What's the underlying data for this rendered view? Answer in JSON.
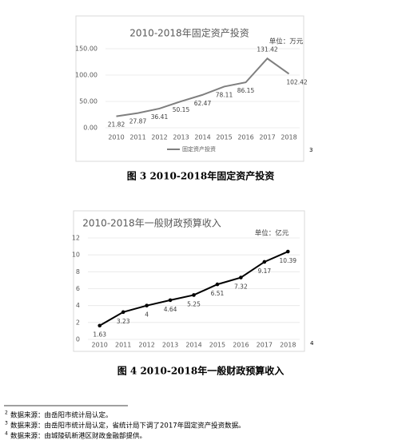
{
  "chart_data": [
    {
      "type": "line",
      "title": "2010-2018年固定资产投资",
      "unit": "单位：万元",
      "categories": [
        "2010",
        "2011",
        "2012",
        "2013",
        "2014",
        "2015",
        "2016",
        "2017",
        "2018"
      ],
      "series": [
        {
          "name": "固定资产投资",
          "color": "#7f7f7f",
          "values": [
            21.82,
            27.87,
            36.41,
            50.15,
            62.47,
            78.11,
            86.15,
            131.42,
            102.42
          ]
        }
      ],
      "ylim": [
        0,
        150
      ],
      "yticks": [
        {
          "value": 0,
          "label": "0.00"
        },
        {
          "value": 50,
          "label": "50.00"
        },
        {
          "value": 100,
          "label": "100.00"
        },
        {
          "value": 150,
          "label": "150.00"
        }
      ],
      "grid": true,
      "markers": false,
      "legend": "bottom"
    },
    {
      "type": "line",
      "title": "2010-2018年一般财政预算收入",
      "unit": "单位：亿元",
      "categories": [
        "2010",
        "2011",
        "2012",
        "2013",
        "2014",
        "2015",
        "2016",
        "2017",
        "2018"
      ],
      "series": [
        {
          "color": "#000000",
          "values": [
            1.63,
            3.23,
            4,
            4.64,
            5.25,
            6.51,
            7.32,
            9.17,
            10.39
          ]
        }
      ],
      "ylim": [
        0,
        12
      ],
      "yticks": [
        0,
        2,
        4,
        6,
        8,
        10,
        12
      ],
      "grid": true,
      "markers": true
    }
  ],
  "footnote_refs": [
    "3",
    "4"
  ],
  "captions": [
    "图 3  2010-2018年固定资产投资",
    "图 4  2010-2018年一般财政预算收入"
  ],
  "footnotes": [
    {
      "marker": "2",
      "text": "数据来源：由岳阳市统计局认定。"
    },
    {
      "marker": "3",
      "text": "数据来源：由岳阳市统计局认定，省统计局下调了2017年固定资产投资数据。"
    },
    {
      "marker": "4",
      "text": "数据来源：由城陵矶新港区财政金融部提供。"
    }
  ]
}
